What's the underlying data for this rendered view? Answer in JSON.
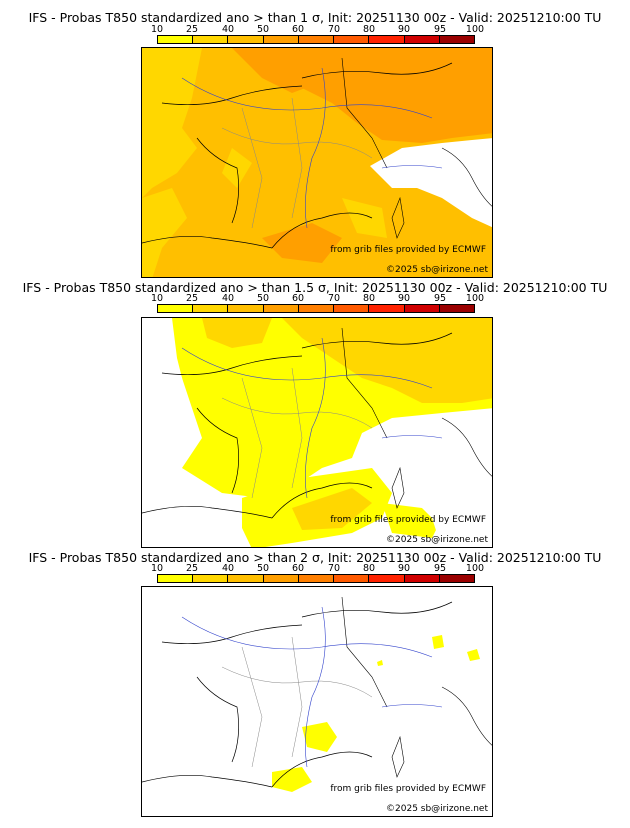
{
  "legend": {
    "ticks": [
      "10",
      "25",
      "40",
      "50",
      "60",
      "70",
      "80",
      "90",
      "95",
      "100"
    ],
    "colors": [
      "#ffff00",
      "#ffd700",
      "#ffbf00",
      "#ff9f00",
      "#ff7f00",
      "#ff5a00",
      "#ff2200",
      "#d00000",
      "#9a0000",
      "#5a0000"
    ]
  },
  "panels": [
    {
      "title": "IFS - Probas T850  standardized ano > than 1 σ, Init: 20251130 00z - Valid: 20251210:00 TU",
      "provider": "from grib files provided by ECMWF",
      "copyright": "©2025 sb@irizone.net"
    },
    {
      "title": "IFS - Probas T850  standardized ano > than 1.5 σ, Init: 20251130 00z - Valid: 20251210:00 TU",
      "provider": "from grib files provided by ECMWF",
      "copyright": "©2025 sb@irizone.net"
    },
    {
      "title": "IFS - Probas T850  standardized ano > than 2 σ, Init: 20251130 00z - Valid: 20251210:00 TU",
      "provider": "from grib files provided by ECMWF",
      "copyright": "©2025 sb@irizone.net"
    }
  ]
}
